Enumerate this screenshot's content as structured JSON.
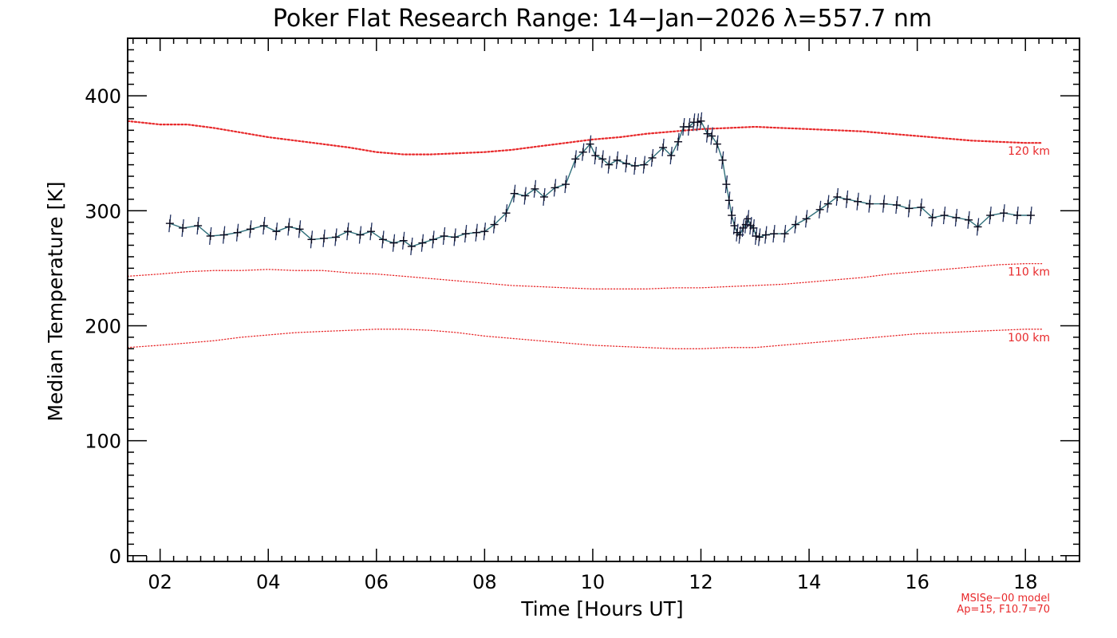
{
  "chart_data": {
    "type": "line",
    "title": "Poker Flat Research Range: 14−Jan−2026 λ=557.7 nm",
    "xlabel": "Time [Hours UT]",
    "ylabel": "Median Temperature [K]",
    "xlim": [
      1.4,
      19.0
    ],
    "ylim": [
      -5,
      450
    ],
    "x_ticks": [
      2,
      4,
      6,
      8,
      10,
      12,
      14,
      16,
      18
    ],
    "x_tick_labels": [
      "02",
      "04",
      "06",
      "08",
      "10",
      "12",
      "14",
      "16",
      "18"
    ],
    "y_ticks": [
      0,
      100,
      200,
      300,
      400
    ],
    "y_tick_labels": [
      "0",
      "100",
      "200",
      "300",
      "400"
    ],
    "series": [
      {
        "name": "Median Temperature",
        "color": "#1f2f5f",
        "x": [
          2.18,
          2.42,
          2.7,
          2.93,
          3.18,
          3.43,
          3.67,
          3.92,
          4.15,
          4.38,
          4.58,
          4.8,
          5.03,
          5.25,
          5.47,
          5.7,
          5.9,
          6.12,
          6.32,
          6.5,
          6.65,
          6.85,
          7.05,
          7.25,
          7.45,
          7.65,
          7.85,
          8.0,
          8.18,
          8.4,
          8.55,
          8.75,
          8.93,
          9.1,
          9.3,
          9.5,
          9.68,
          9.82,
          9.95,
          10.05,
          10.18,
          10.3,
          10.45,
          10.62,
          10.78,
          10.95,
          11.1,
          11.3,
          11.45,
          11.58,
          11.68,
          11.78,
          11.87,
          11.94,
          12.0,
          12.12,
          12.2,
          12.3,
          12.4,
          12.47,
          12.52,
          12.57,
          12.62,
          12.67,
          12.72,
          12.78,
          12.83,
          12.87,
          12.92,
          12.97,
          13.02,
          13.08,
          13.2,
          13.35,
          13.55,
          13.75,
          13.95,
          14.2,
          14.35,
          14.52,
          14.7,
          14.9,
          15.12,
          15.38,
          15.62,
          15.85,
          16.07,
          16.28,
          16.5,
          16.72,
          16.95,
          17.12,
          17.35,
          17.6,
          17.85,
          18.1
        ],
        "values": [
          289,
          285,
          287,
          278,
          279,
          281,
          284,
          287,
          282,
          286,
          284,
          275,
          276,
          277,
          282,
          279,
          282,
          275,
          272,
          274,
          269,
          272,
          275,
          278,
          277,
          280,
          281,
          282,
          288,
          298,
          315,
          313,
          319,
          312,
          320,
          323,
          345,
          351,
          358,
          348,
          345,
          340,
          344,
          341,
          339,
          340,
          346,
          355,
          348,
          360,
          373,
          373,
          377,
          377,
          378,
          367,
          365,
          358,
          344,
          323,
          309,
          296,
          287,
          281,
          279,
          285,
          288,
          293,
          287,
          285,
          278,
          277,
          279,
          280,
          280,
          288,
          293,
          301,
          306,
          312,
          310,
          308,
          306,
          306,
          305,
          302,
          303,
          294,
          296,
          294,
          292,
          286,
          296,
          298,
          296,
          296
        ]
      },
      {
        "name": "120 km",
        "color": "#e8292b",
        "x": [
          1.4,
          2.0,
          2.5,
          3.0,
          3.5,
          4.0,
          4.5,
          5.0,
          5.5,
          6.0,
          6.5,
          7.0,
          7.5,
          8.0,
          8.5,
          9.0,
          9.5,
          10.0,
          10.5,
          11.0,
          11.5,
          12.0,
          12.5,
          13.0,
          13.5,
          14.0,
          14.5,
          15.0,
          15.5,
          16.0,
          16.5,
          17.0,
          17.5,
          18.0,
          18.3
        ],
        "values": [
          378,
          375,
          375,
          372,
          368,
          364,
          361,
          358,
          355,
          351,
          349,
          349,
          350,
          351,
          353,
          356,
          359,
          362,
          364,
          367,
          369,
          371,
          372,
          373,
          372,
          371,
          370,
          369,
          367,
          365,
          363,
          361,
          360,
          359,
          359
        ]
      },
      {
        "name": "110 km",
        "color": "#e8292b",
        "x": [
          1.4,
          2.0,
          2.5,
          3.0,
          3.5,
          4.0,
          4.5,
          5.0,
          5.5,
          6.0,
          6.5,
          7.0,
          7.5,
          8.0,
          8.5,
          9.0,
          9.5,
          10.0,
          10.5,
          11.0,
          11.5,
          12.0,
          12.5,
          13.0,
          13.5,
          14.0,
          14.5,
          15.0,
          15.5,
          16.0,
          16.5,
          17.0,
          17.5,
          18.0,
          18.3
        ],
        "values": [
          243,
          245,
          247,
          248,
          248,
          249,
          248,
          248,
          246,
          245,
          243,
          241,
          239,
          237,
          235,
          234,
          233,
          232,
          232,
          232,
          233,
          233,
          234,
          235,
          236,
          238,
          240,
          242,
          245,
          247,
          249,
          251,
          253,
          254,
          254
        ]
      },
      {
        "name": "100 km",
        "color": "#e8292b",
        "x": [
          1.4,
          2.0,
          2.5,
          3.0,
          3.5,
          4.0,
          4.5,
          5.0,
          5.5,
          6.0,
          6.5,
          7.0,
          7.5,
          8.0,
          8.5,
          9.0,
          9.5,
          10.0,
          10.5,
          11.0,
          11.5,
          12.0,
          12.5,
          13.0,
          13.5,
          14.0,
          14.5,
          15.0,
          15.5,
          16.0,
          16.5,
          17.0,
          17.5,
          18.0,
          18.3
        ],
        "values": [
          181,
          183,
          185,
          187,
          190,
          192,
          194,
          195,
          196,
          197,
          197,
          196,
          194,
          191,
          189,
          187,
          185,
          183,
          182,
          181,
          180,
          180,
          181,
          181,
          183,
          185,
          187,
          189,
          191,
          193,
          194,
          195,
          196,
          197,
          197
        ]
      }
    ],
    "model_labels": [
      {
        "text": "120 km",
        "y": 359
      },
      {
        "text": "110 km",
        "y": 254
      },
      {
        "text": "100 km",
        "y": 197
      }
    ],
    "model_note": [
      "MSISe−00 model",
      "Ap=15, F10.7=70"
    ]
  }
}
